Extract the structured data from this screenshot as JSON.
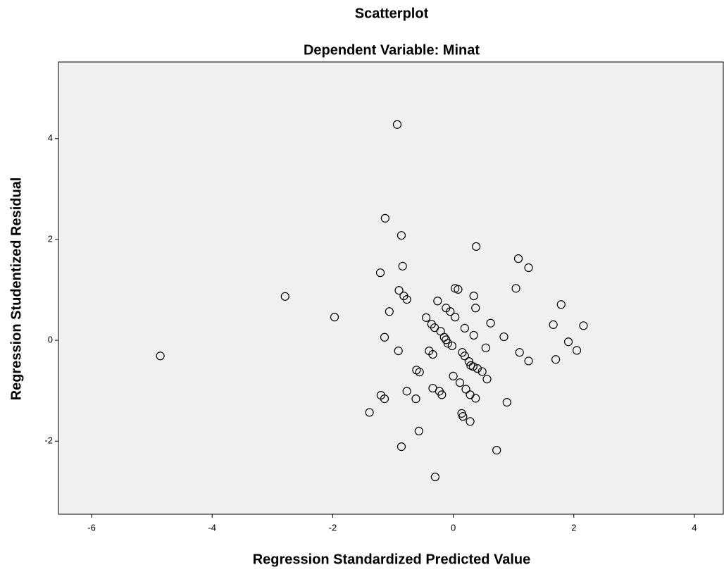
{
  "chart_data": {
    "type": "scatter",
    "title": "Scatterplot",
    "subtitle": "Dependent Variable: Minat",
    "x_label": "Regression Standardized Predicted Value",
    "y_label": "Regression Studentized Residual",
    "xlim": [
      -6.55,
      4.48
    ],
    "ylim": [
      -3.45,
      5.52
    ],
    "xticks": [
      -6,
      -4,
      -2,
      0,
      2,
      4
    ],
    "yticks": [
      -2,
      0,
      2,
      4
    ],
    "marker_color": "#000000",
    "background": "#f0f0f0",
    "x": [
      -4.86,
      -2.79,
      -1.97,
      -1.39,
      -1.2,
      -1.14,
      -1.14,
      -1.21,
      -1.13,
      -1.06,
      -0.93,
      -0.86,
      -0.84,
      -0.9,
      -0.82,
      -0.77,
      -0.91,
      -0.86,
      -0.77,
      -0.62,
      -0.61,
      -0.56,
      -0.57,
      -0.45,
      -0.4,
      -0.36,
      -0.31,
      -0.34,
      -0.34,
      -0.3,
      -0.26,
      -0.23,
      -0.19,
      -0.21,
      -0.15,
      -0.12,
      -0.09,
      -0.12,
      -0.05,
      -0.02,
      0.0,
      0.03,
      0.03,
      0.08,
      0.11,
      0.14,
      0.16,
      0.15,
      0.19,
      0.19,
      0.21,
      0.26,
      0.29,
      0.28,
      0.28,
      0.33,
      0.34,
      0.37,
      0.37,
      0.4,
      0.38,
      0.48,
      0.54,
      0.56,
      0.62,
      0.34,
      0.72,
      0.84,
      0.89,
      1.04,
      1.08,
      1.1,
      1.25,
      1.25,
      1.66,
      1.7,
      1.79,
      1.91,
      2.05,
      2.16
    ],
    "values": [
      -0.31,
      0.87,
      0.46,
      -1.43,
      -1.09,
      -1.16,
      0.06,
      1.34,
      2.42,
      0.57,
      4.28,
      2.08,
      1.47,
      0.99,
      0.88,
      0.81,
      -0.21,
      -2.11,
      -1.01,
      -1.16,
      -0.59,
      -0.63,
      -1.8,
      0.45,
      -0.21,
      0.32,
      0.25,
      -0.28,
      -0.95,
      -2.71,
      0.78,
      -1.01,
      -1.08,
      0.18,
      0.06,
      0.01,
      -0.06,
      0.64,
      0.57,
      -0.11,
      -0.71,
      0.46,
      1.03,
      1.01,
      -0.84,
      -1.45,
      -1.51,
      -0.24,
      -0.31,
      0.24,
      -0.97,
      -0.42,
      -0.5,
      -1.08,
      -1.61,
      -0.52,
      0.1,
      -1.15,
      0.64,
      -0.56,
      1.86,
      -0.62,
      -0.15,
      -0.77,
      0.34,
      0.88,
      -2.18,
      0.07,
      -1.23,
      1.03,
      1.62,
      -0.24,
      1.44,
      -0.41,
      0.31,
      -0.38,
      0.71,
      -0.03,
      -0.2,
      0.29
    ]
  }
}
